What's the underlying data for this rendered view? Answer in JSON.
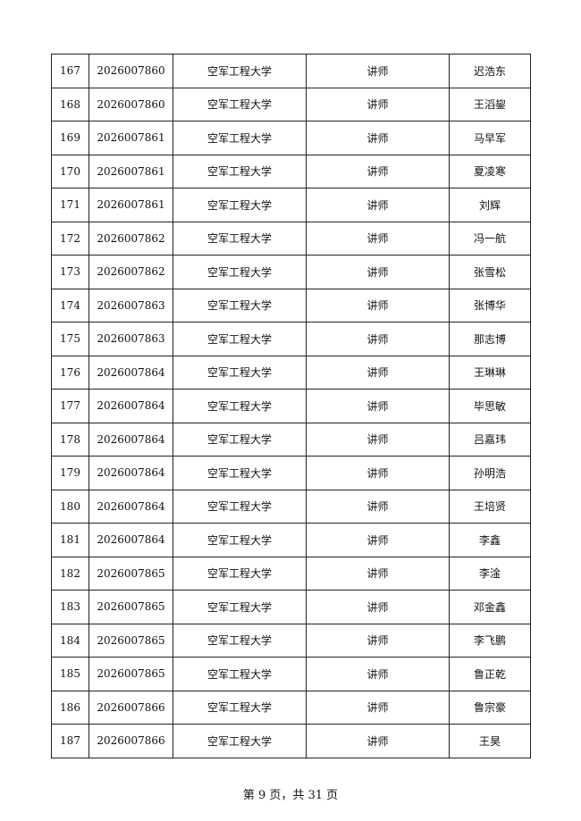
{
  "rows": [
    [
      "167",
      "2026007860",
      "空军工程大学",
      "讲师",
      "迟浩东"
    ],
    [
      "168",
      "2026007860",
      "空军工程大学",
      "讲师",
      "王滔鋆"
    ],
    [
      "169",
      "2026007861",
      "空军工程大学",
      "讲师",
      "马早军"
    ],
    [
      "170",
      "2026007861",
      "空军工程大学",
      "讲师",
      "夏凌寒"
    ],
    [
      "171",
      "2026007861",
      "空军工程大学",
      "讲师",
      "刘辉"
    ],
    [
      "172",
      "2026007862",
      "空军工程大学",
      "讲师",
      "冯一航"
    ],
    [
      "173",
      "2026007862",
      "空军工程大学",
      "讲师",
      "张雪松"
    ],
    [
      "174",
      "2026007863",
      "空军工程大学",
      "讲师",
      "张博华"
    ],
    [
      "175",
      "2026007863",
      "空军工程大学",
      "讲师",
      "那志博"
    ],
    [
      "176",
      "2026007864",
      "空军工程大学",
      "讲师",
      "王琳琳"
    ],
    [
      "177",
      "2026007864",
      "空军工程大学",
      "讲师",
      "毕思敏"
    ],
    [
      "178",
      "2026007864",
      "空军工程大学",
      "讲师",
      "吕嘉玮"
    ],
    [
      "179",
      "2026007864",
      "空军工程大学",
      "讲师",
      "孙明浩"
    ],
    [
      "180",
      "2026007864",
      "空军工程大学",
      "讲师",
      "王培贤"
    ],
    [
      "181",
      "2026007864",
      "空军工程大学",
      "讲师",
      "李鑫"
    ],
    [
      "182",
      "2026007865",
      "空军工程大学",
      "讲师",
      "李淦"
    ],
    [
      "183",
      "2026007865",
      "空军工程大学",
      "讲师",
      "邓金鑫"
    ],
    [
      "184",
      "2026007865",
      "空军工程大学",
      "讲师",
      "李飞鹏"
    ],
    [
      "185",
      "2026007865",
      "空军工程大学",
      "讲师",
      "鲁正乾"
    ],
    [
      "186",
      "2026007866",
      "空军工程大学",
      "讲师",
      "鲁宗豪"
    ],
    [
      "187",
      "2026007866",
      "空军工程大学",
      "讲师",
      "王昊"
    ]
  ],
  "footer": "第 9 页，共 31 页"
}
